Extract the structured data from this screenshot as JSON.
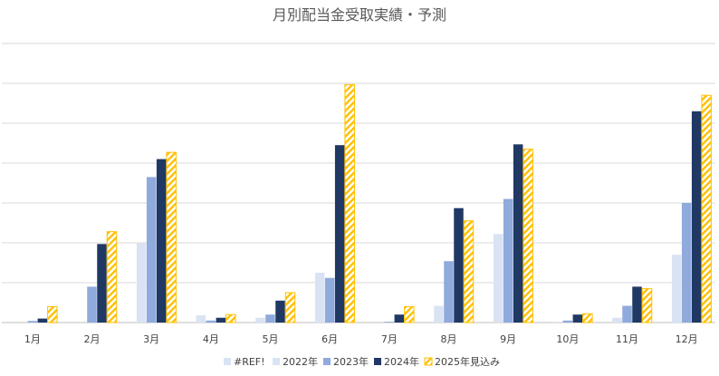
{
  "chart_data": {
    "type": "bar",
    "title": "月別配当金受取実績・予測",
    "categories": [
      "1月",
      "2月",
      "3月",
      "4月",
      "5月",
      "6月",
      "7月",
      "8月",
      "9月",
      "10月",
      "11月",
      "12月"
    ],
    "ylim": [
      0,
      7
    ],
    "grid": true,
    "legend_position": "bottom",
    "series": [
      {
        "name": "#REF!",
        "color": "#dae3f3",
        "pattern": "solid",
        "values": [
          0,
          0,
          0,
          0,
          0,
          0,
          0,
          0,
          0,
          0,
          0,
          0
        ]
      },
      {
        "name": "2022年",
        "color": "#dae3f3",
        "pattern": "solid",
        "values": [
          0,
          0,
          2.0,
          0.18,
          0.12,
          1.25,
          0,
          0.42,
          2.22,
          0.02,
          0.12,
          1.7
        ]
      },
      {
        "name": "2023年",
        "color": "#8faadc",
        "pattern": "solid",
        "values": [
          0.04,
          0.9,
          3.65,
          0.05,
          0.2,
          1.12,
          0.02,
          1.54,
          3.1,
          0.05,
          0.42,
          3.0
        ]
      },
      {
        "name": "2024年",
        "color": "#203864",
        "pattern": "solid",
        "values": [
          0.1,
          1.97,
          4.1,
          0.12,
          0.55,
          4.45,
          0.2,
          2.87,
          4.47,
          0.2,
          0.9,
          5.3
        ]
      },
      {
        "name": "2025年見込み",
        "color": "#ffc000",
        "pattern": "hatch",
        "values": [
          0.4,
          2.28,
          4.27,
          0.2,
          0.75,
          5.97,
          0.4,
          2.55,
          4.35,
          0.22,
          0.85,
          5.7
        ]
      }
    ]
  }
}
